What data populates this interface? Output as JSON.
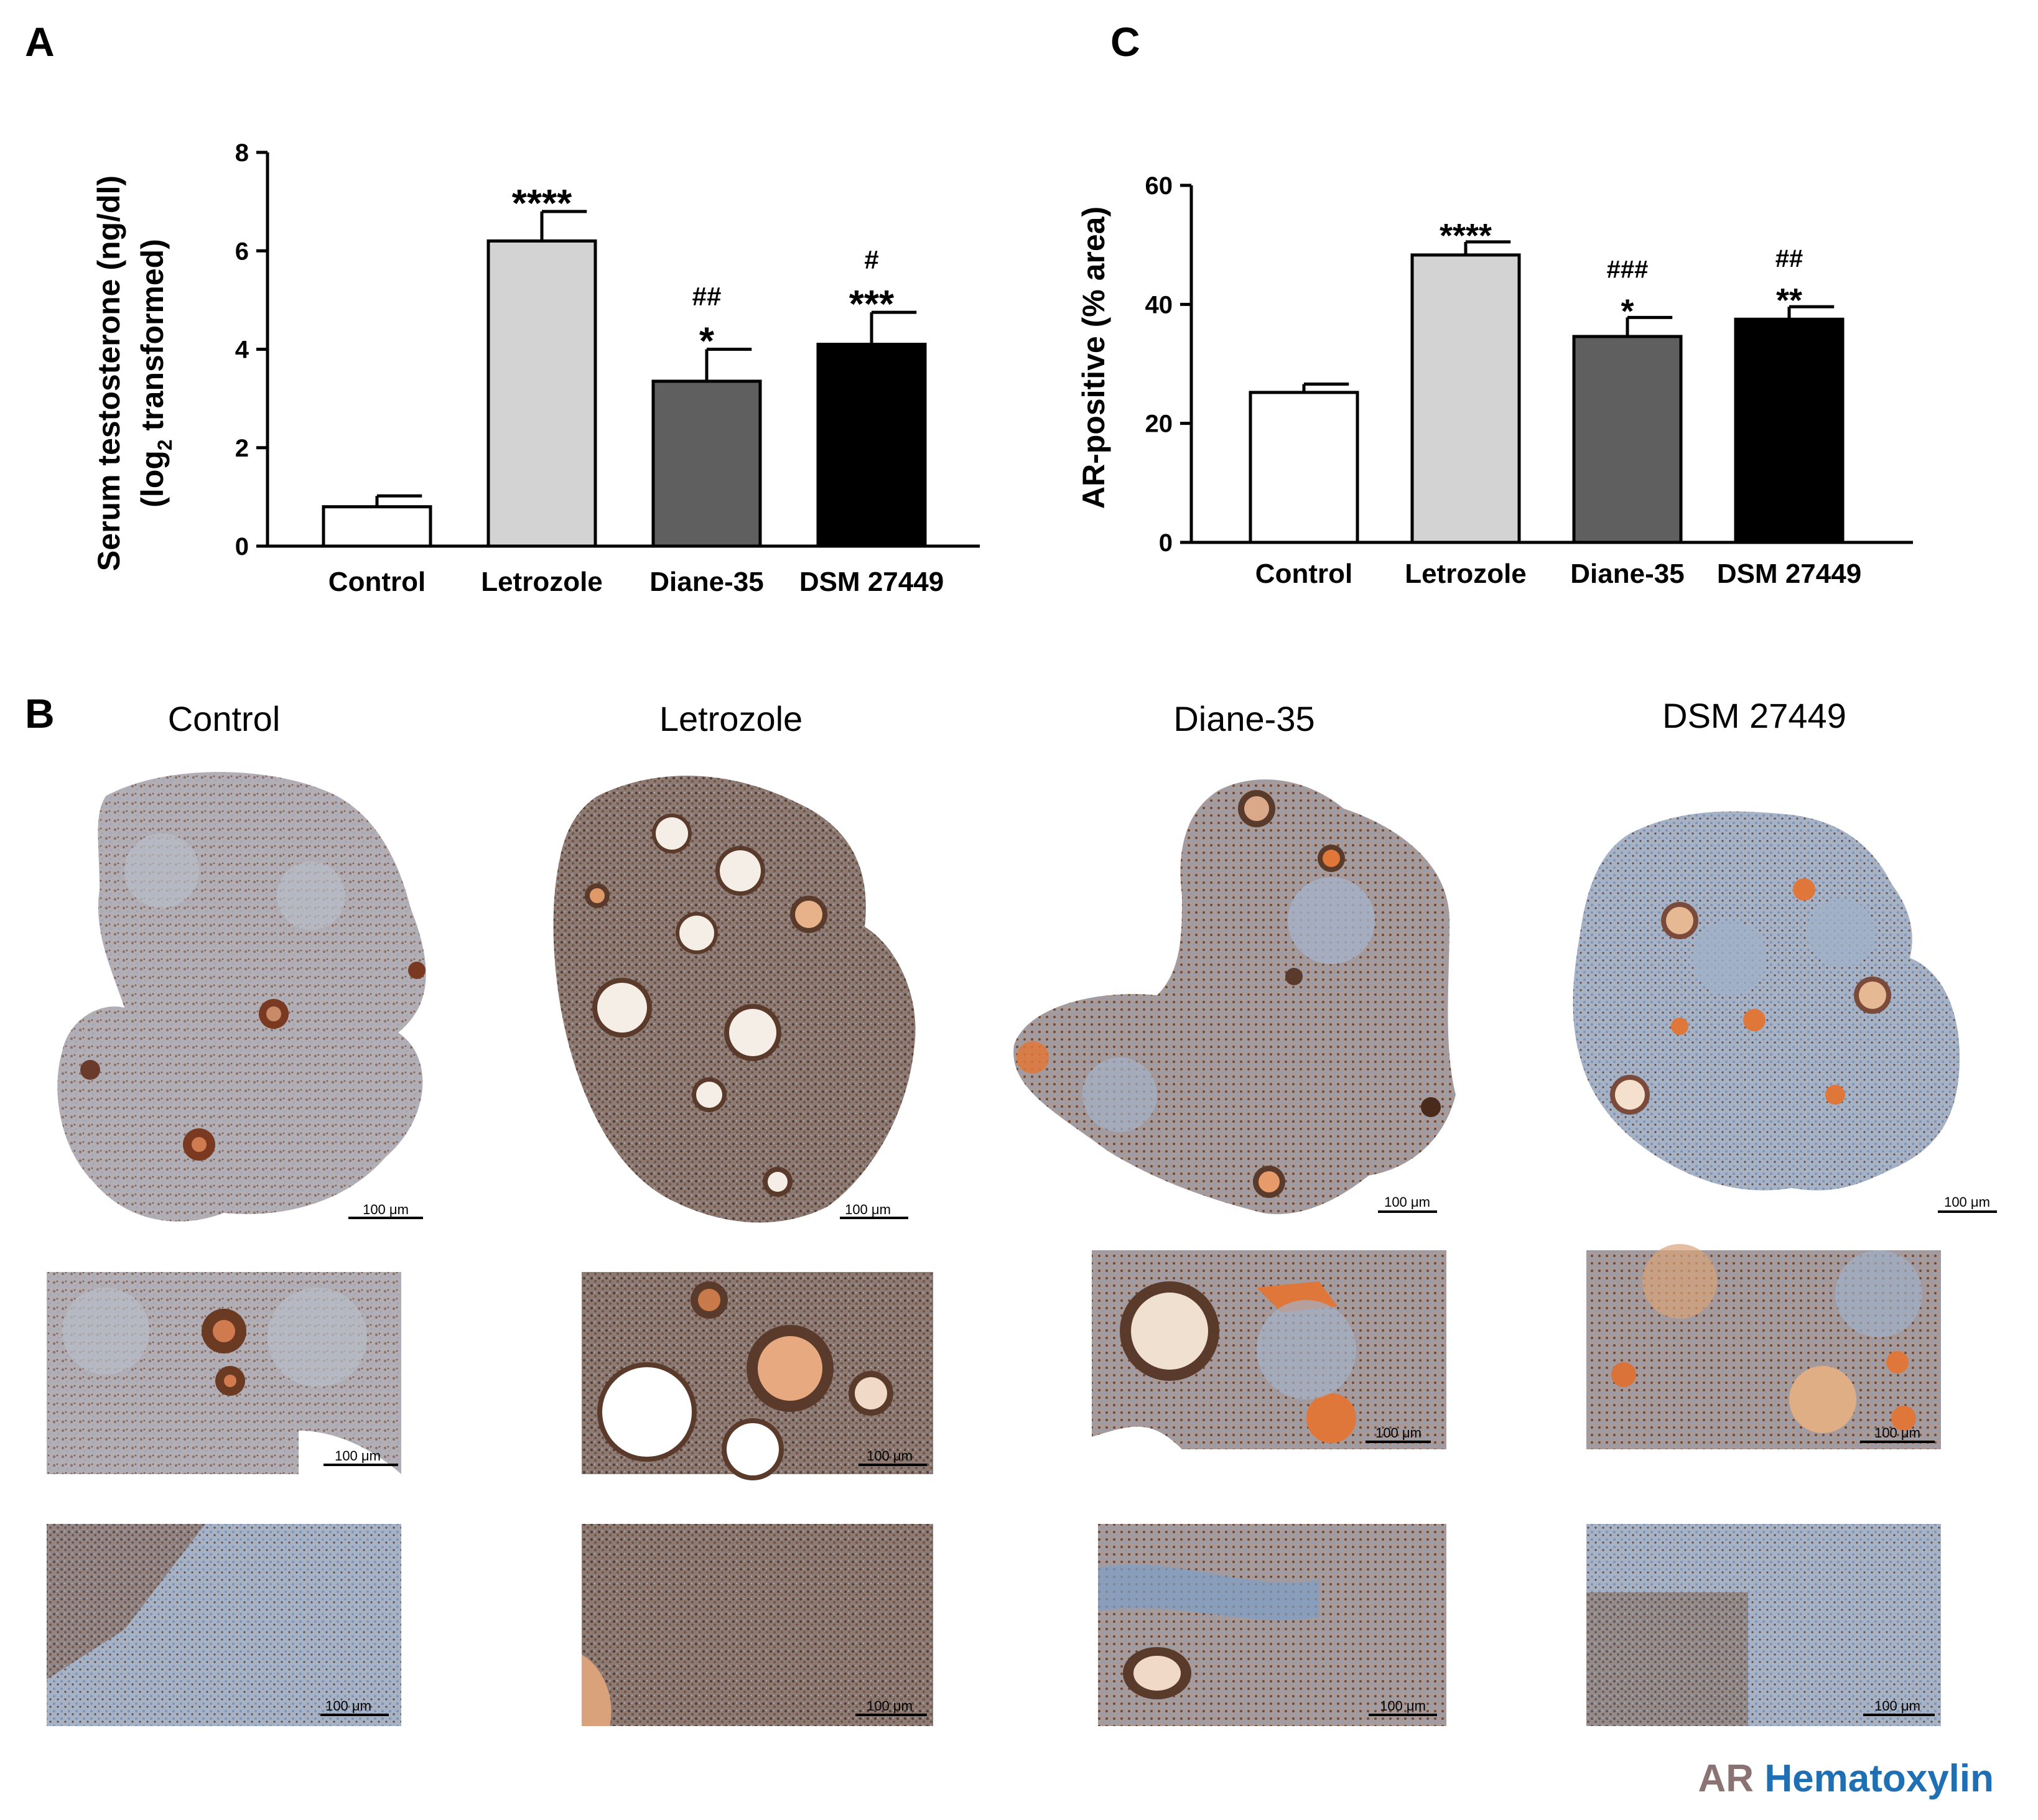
{
  "panels": {
    "A_label": "A",
    "B_label": "B",
    "C_label": "C"
  },
  "chart_data": [
    {
      "type": "bar",
      "panel": "A",
      "categories": [
        "Control",
        "Letrozole",
        "Diane-35",
        "DSM 27449"
      ],
      "values": [
        0.8,
        6.2,
        3.35,
        4.1
      ],
      "errors": [
        0.22,
        0.6,
        0.65,
        0.65
      ],
      "ylabel_line1": "Serum testosterone (ng/dl)",
      "ylabel_line2_prefix": "(log",
      "ylabel_line2_sub": "2",
      "ylabel_line2_suffix": " transformed)",
      "ylim": [
        0,
        8
      ],
      "yticks": [
        "0",
        "2",
        "4",
        "6",
        "8"
      ],
      "bar_colors": [
        "#ffffff",
        "#d3d3d3",
        "#5f5f5f",
        "#000000"
      ],
      "annotations": [
        {
          "stars": "",
          "hashes": ""
        },
        {
          "stars": "****",
          "hashes": ""
        },
        {
          "stars": "*",
          "hashes": "##"
        },
        {
          "stars": "***",
          "hashes": "#"
        }
      ]
    },
    {
      "type": "bar",
      "panel": "C",
      "categories": [
        "Control",
        "Letrozole",
        "Diane-35",
        "DSM 27449"
      ],
      "values": [
        25.2,
        48.3,
        34.6,
        37.5
      ],
      "errors": [
        1.4,
        2.2,
        3.2,
        2.1
      ],
      "ylabel": "AR-positive (% area)",
      "ylim": [
        0,
        60
      ],
      "yticks": [
        "0",
        "20",
        "40",
        "60"
      ],
      "bar_colors": [
        "#ffffff",
        "#d3d3d3",
        "#5f5f5f",
        "#000000"
      ],
      "annotations": [
        {
          "stars": "",
          "hashes": ""
        },
        {
          "stars": "****",
          "hashes": ""
        },
        {
          "stars": "*",
          "hashes": "###"
        },
        {
          "stars": "**",
          "hashes": "##"
        }
      ]
    }
  ],
  "micrographs": {
    "columns": [
      "Control",
      "Letrozole",
      "Diane-35",
      "DSM 27449"
    ],
    "scale_bar": "100 μm"
  },
  "legend": {
    "ar": "AR",
    "hematoxylin": "Hematoxylin",
    "ar_color": "#8b7374",
    "hematoxylin_color": "#1f6fb5"
  }
}
